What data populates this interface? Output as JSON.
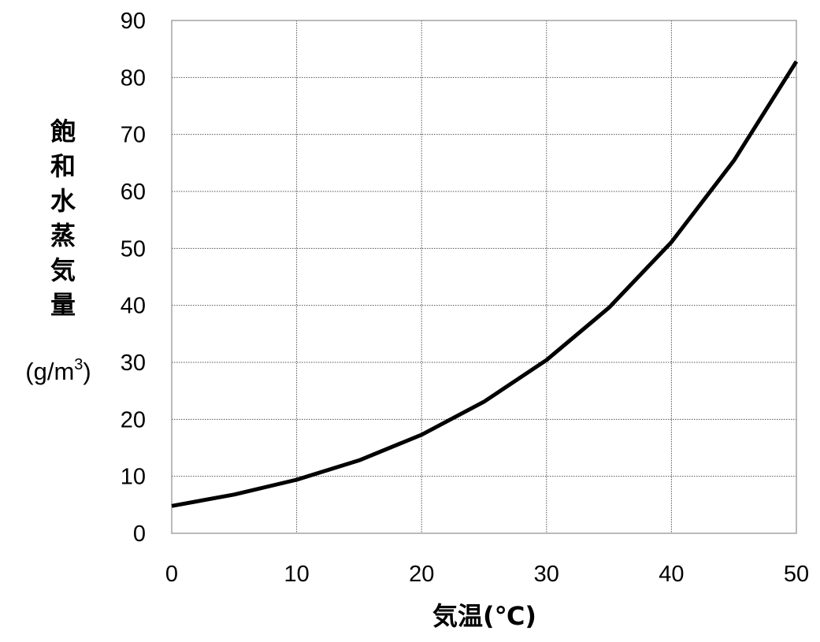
{
  "chart_data": {
    "type": "line",
    "title": "",
    "xlabel": "気温(℃)",
    "ylabel_chars": [
      "飽",
      "和",
      "水",
      "蒸",
      "気",
      "量"
    ],
    "ylabel_unit": "(g/m",
    "ylabel_unit_sup": "3",
    "ylabel_unit_close": ")",
    "xlim": [
      0,
      50
    ],
    "ylim": [
      0,
      90
    ],
    "x_ticks": [
      "0",
      "10",
      "20",
      "30",
      "40",
      "50"
    ],
    "y_ticks": [
      "0",
      "10",
      "20",
      "30",
      "40",
      "50",
      "60",
      "70",
      "80",
      "90"
    ],
    "x_tick_values": [
      0,
      10,
      20,
      30,
      40,
      50
    ],
    "y_tick_values": [
      0,
      10,
      20,
      30,
      40,
      50,
      60,
      70,
      80,
      90
    ],
    "grid": true,
    "series": [
      {
        "x": [
          0,
          5,
          10,
          15,
          20,
          25,
          30,
          35,
          40,
          45,
          50
        ],
        "y": [
          4.8,
          6.8,
          9.4,
          12.8,
          17.3,
          23.1,
          30.4,
          39.6,
          51.1,
          65.4,
          82.8
        ],
        "color": "#000000"
      }
    ]
  }
}
